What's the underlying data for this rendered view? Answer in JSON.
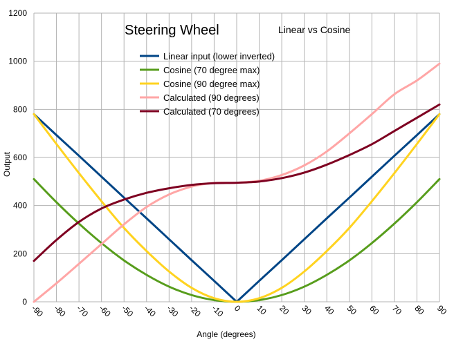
{
  "chart_data": {
    "type": "line",
    "title": "Steering Wheel",
    "subtitle": "Linear vs Cosine",
    "xlabel": "Angle (degrees)",
    "ylabel": "Output",
    "xlim": [
      -90,
      90
    ],
    "ylim": [
      0,
      1200
    ],
    "grid": true,
    "legend_position": "top-center",
    "x_ticks": [
      "-90",
      "-80",
      "-70",
      "-60",
      "-50",
      "-40",
      "-30",
      "-20",
      "-10",
      "0",
      "10",
      "20",
      "30",
      "40",
      "50",
      "60",
      "70",
      "80",
      "90"
    ],
    "y_ticks": [
      "0",
      "200",
      "400",
      "600",
      "800",
      "1000",
      "1200"
    ],
    "x": [
      -90,
      -80,
      -70,
      -60,
      -50,
      -40,
      -30,
      -20,
      -10,
      0,
      10,
      20,
      30,
      40,
      50,
      60,
      70,
      80,
      90
    ],
    "series": [
      {
        "name": "Linear input (lower inverted)",
        "color": "#004586",
        "values": [
          780,
          693,
          607,
          520,
          433,
          347,
          260,
          173,
          87,
          0,
          87,
          173,
          260,
          347,
          433,
          520,
          607,
          693,
          780
        ]
      },
      {
        "name": "Cosine (70 degree max)",
        "color": "#579d1c",
        "values": [
          510,
          414,
          325,
          244,
          172,
          112,
          63,
          28,
          7,
          0,
          7,
          28,
          63,
          112,
          172,
          244,
          325,
          414,
          510
        ]
      },
      {
        "name": "Cosine (90 degree max)",
        "color": "#ffd320",
        "values": [
          780,
          656,
          535,
          418,
          307,
          211,
          126,
          58,
          15,
          0,
          15,
          58,
          126,
          211,
          307,
          418,
          535,
          656,
          780
        ]
      },
      {
        "name": "Calculated (90 degrees)",
        "color": "#ffa6a6",
        "values": [
          0,
          77,
          158,
          240,
          322,
          394,
          446,
          479,
          494,
          495,
          503,
          527,
          567,
          625,
          700,
          780,
          863,
          920,
          990
        ]
      },
      {
        "name": "Calculated (70 degrees)",
        "color": "#7e0021",
        "values": [
          170,
          257,
          332,
          388,
          425,
          453,
          472,
          486,
          493,
          495,
          500,
          514,
          537,
          570,
          610,
          655,
          710,
          765,
          820
        ]
      }
    ]
  }
}
